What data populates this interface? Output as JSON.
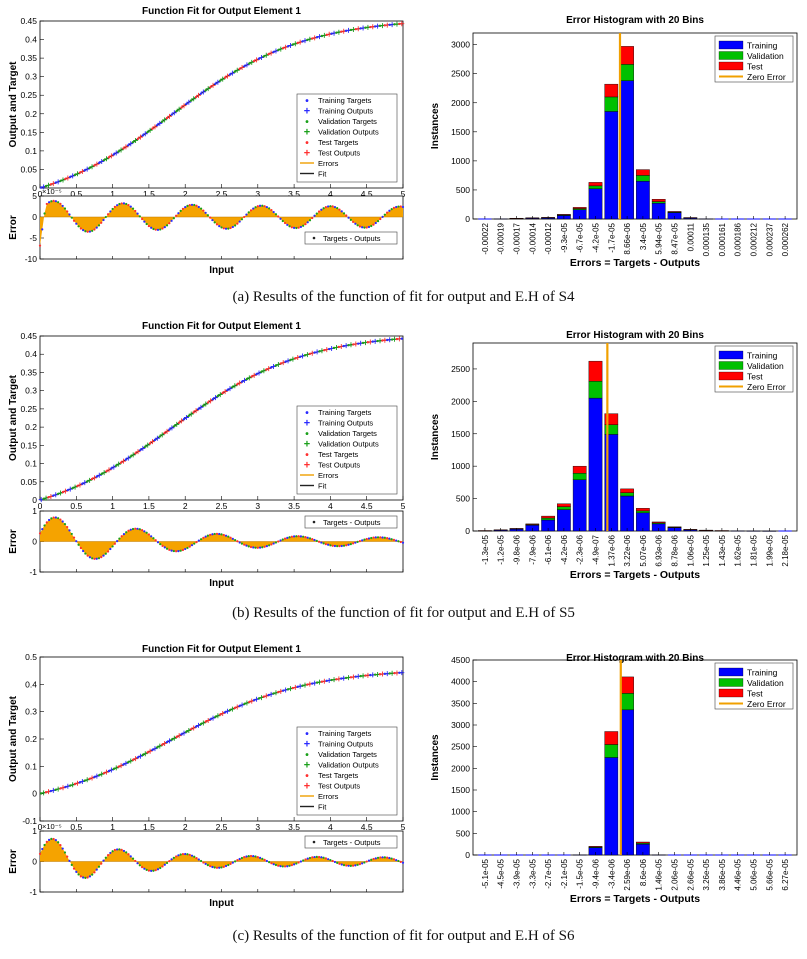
{
  "chart_data": [
    {
      "panel": "a",
      "caption": "(a)  Results of the function of fit for output and E.H of S4",
      "fit": {
        "type": "line",
        "title": "Function Fit for Output Element 1",
        "ylabel": "Output and Target",
        "ylim": [
          0,
          0.45
        ],
        "yticks": [
          "0",
          "0.05",
          "0.1",
          "0.15",
          "0.2",
          "0.25",
          "0.3",
          "0.35",
          "0.4",
          "0.45"
        ],
        "x_ticks": [
          "0",
          "0.5",
          "1",
          "1.5",
          "2",
          "2.5",
          "3",
          "3.5",
          "4",
          "4.5",
          "5"
        ],
        "xlim": [
          0,
          5
        ],
        "curve_max": 0.443,
        "legend": [
          "Training Targets",
          "Training Outputs",
          "Validation Targets",
          "Validation Outputs",
          "Test Targets",
          "Test Outputs",
          "Errors",
          "Fit"
        ],
        "error_plot": {
          "ylabel": "Error",
          "xlabel": "Input",
          "scale_label": "×10⁻⁵",
          "ylim": [
            -10,
            5
          ],
          "yticks": [
            "5",
            "0",
            "-5",
            "-10"
          ],
          "legend": "Targets - Outputs",
          "amp": 4,
          "freq": 1.05,
          "decay": 0.55,
          "floor": 0.6,
          "start_spike": -8
        }
      },
      "hist": {
        "type": "bar",
        "title": "Error Histogram with 20 Bins",
        "ylabel": "Instances",
        "xlabel": "Errors = Targets - Outputs",
        "ylim": [
          0,
          3200
        ],
        "yticks": [
          "0",
          "500",
          "1000",
          "1500",
          "2000",
          "2500",
          "3000"
        ],
        "categories": [
          "-0.00022",
          "-0.00019",
          "-0.00017",
          "-0.00014",
          "-0.00012",
          "-9.3e-05",
          "-6.7e-05",
          "-4.2e-05",
          "-1.7e-05",
          "8.66e-06",
          "3.4e-05",
          "5.94e-05",
          "8.47e-05",
          "0.00011",
          "0.000135",
          "0.000161",
          "0.000186",
          "0.000212",
          "0.000237",
          "0.000262"
        ],
        "series": [
          {
            "name": "Training",
            "color": "#0000ff",
            "values": [
              0,
              5,
              10,
              15,
              20,
              60,
              160,
              520,
              1850,
              2380,
              650,
              270,
              110,
              20,
              5,
              0,
              0,
              0,
              0,
              0
            ]
          },
          {
            "name": "Validation",
            "color": "#00c000",
            "values": [
              0,
              0,
              2,
              3,
              4,
              10,
              20,
              50,
              250,
              280,
              100,
              30,
              10,
              3,
              0,
              0,
              0,
              0,
              0,
              0
            ]
          },
          {
            "name": "Test",
            "color": "#ff0000",
            "values": [
              0,
              0,
              2,
              3,
              4,
              10,
              20,
              60,
              220,
              310,
              100,
              40,
              10,
              2,
              0,
              0,
              0,
              0,
              0,
              0
            ]
          }
        ],
        "zero_error_index": 8.55,
        "legend": [
          "Training",
          "Validation",
          "Test",
          "Zero Error"
        ]
      }
    },
    {
      "panel": "b",
      "caption": "(b)  Results of the function of fit for output and E.H of S5",
      "fit": {
        "type": "line",
        "title": "Function Fit for Output Element 1",
        "ylabel": "Output and Target",
        "ylim": [
          0,
          0.45
        ],
        "yticks": [
          "0",
          "0.05",
          "0.1",
          "0.15",
          "0.2",
          "0.25",
          "0.3",
          "0.35",
          "0.4",
          "0.45"
        ],
        "x_ticks": [
          "0",
          "0.5",
          "1",
          "1.5",
          "2",
          "2.5",
          "3",
          "3.5",
          "4",
          "4.5",
          "5"
        ],
        "xlim": [
          0,
          5
        ],
        "curve_max": 0.443,
        "legend": [
          "Training Targets",
          "Training Outputs",
          "Validation Targets",
          "Validation Outputs",
          "Test Targets",
          "Test Outputs",
          "Errors",
          "Fit"
        ],
        "error_plot": {
          "ylabel": "Error",
          "xlabel": "Input",
          "scale_label": "",
          "ylim": [
            -1,
            1
          ],
          "yticks": [
            "1",
            "0",
            "-1"
          ],
          "legend": "Targets - Outputs",
          "amp": 0.9,
          "freq": 0.9,
          "decay": 0.7,
          "floor": 0.12,
          "start_spike": 0
        }
      },
      "hist": {
        "type": "bar",
        "title": "Error Histogram with 20 Bins",
        "ylabel": "Instances",
        "xlabel": "Errors = Targets - Outputs",
        "ylim": [
          0,
          2900
        ],
        "yticks": [
          "0",
          "500",
          "1000",
          "1500",
          "2000",
          "2500"
        ],
        "categories": [
          "-1.3e-05",
          "-1.2e-05",
          "-9.8e-06",
          "-7.9e-06",
          "-6.1e-06",
          "-4.2e-06",
          "-2.3e-06",
          "-4.9e-07",
          "1.37e-06",
          "3.22e-06",
          "5.07e-06",
          "6.93e-06",
          "8.78e-06",
          "1.06e-05",
          "1.25e-05",
          "1.43e-05",
          "1.62e-05",
          "1.81e-05",
          "1.99e-05",
          "2.18e-05"
        ],
        "series": [
          {
            "name": "Training",
            "color": "#0000ff",
            "values": [
              5,
              15,
              30,
              90,
              170,
              330,
              790,
              2050,
              1490,
              540,
              280,
              110,
              50,
              20,
              10,
              5,
              3,
              2,
              1,
              0
            ]
          },
          {
            "name": "Validation",
            "color": "#00c000",
            "values": [
              1,
              3,
              5,
              10,
              30,
              45,
              100,
              260,
              150,
              50,
              30,
              15,
              8,
              3,
              2,
              1,
              0,
              0,
              0,
              0
            ]
          },
          {
            "name": "Test",
            "color": "#ff0000",
            "values": [
              1,
              2,
              5,
              10,
              30,
              45,
              110,
              310,
              170,
              60,
              40,
              15,
              7,
              2,
              2,
              1,
              0,
              0,
              0,
              0
            ]
          }
        ],
        "zero_error_index": 7.75,
        "legend": [
          "Training",
          "Validation",
          "Test",
          "Zero Error"
        ]
      }
    },
    {
      "panel": "c",
      "caption": "(c)  Results of the function of fit for output and E.H of S6",
      "fit": {
        "type": "line",
        "title": "Function Fit for Output Element 1",
        "ylabel": "Output and Target",
        "ylim": [
          -0.1,
          0.5
        ],
        "yticks": [
          "-0.1",
          "0",
          "0.1",
          "0.2",
          "0.3",
          "0.4",
          "0.5"
        ],
        "x_ticks": [
          "0",
          "0.5",
          "1",
          "1.5",
          "2",
          "2.5",
          "3",
          "3.5",
          "4",
          "4.5",
          "5"
        ],
        "xlim": [
          0,
          5
        ],
        "curve_max": 0.443,
        "legend": [
          "Training Targets",
          "Training Outputs",
          "Validation Targets",
          "Validation Outputs",
          "Test Targets",
          "Test Outputs",
          "Errors",
          "Fit"
        ],
        "error_plot": {
          "ylabel": "Error",
          "xlabel": "Input",
          "scale_label": "×10⁻⁵",
          "ylim": [
            -1,
            1
          ],
          "yticks": [
            "1",
            "0",
            "-1"
          ],
          "legend": "Targets - Outputs",
          "amp": 0.85,
          "freq": 1.1,
          "decay": 0.9,
          "floor": 0.15,
          "start_spike": 0
        }
      },
      "hist": {
        "type": "bar",
        "title": "Error Histogram with 20 Bins",
        "ylabel": "Instances",
        "xlabel": "Errors = Targets - Outputs",
        "ylim": [
          0,
          4500
        ],
        "yticks": [
          "0",
          "500",
          "1000",
          "1500",
          "2000",
          "2500",
          "3000",
          "3500",
          "4000",
          "4500"
        ],
        "categories": [
          "-5.1e-05",
          "-4.5e-05",
          "-3.9e-05",
          "-3.3e-05",
          "-2.7e-05",
          "-2.1e-05",
          "-1.5e-05",
          "-9.4e-06",
          "-3.4e-06",
          "2.59e-06",
          "8.6e-06",
          "1.46e-05",
          "2.06e-05",
          "2.66e-05",
          "3.26e-05",
          "3.86e-05",
          "4.46e-05",
          "5.06e-05",
          "5.66e-05",
          "6.27e-05"
        ],
        "series": [
          {
            "name": "Training",
            "color": "#0000ff",
            "values": [
              0,
              0,
              0,
              0,
              0,
              0,
              5,
              170,
              2250,
              3350,
              250,
              5,
              0,
              0,
              0,
              0,
              0,
              0,
              0,
              0
            ]
          },
          {
            "name": "Validation",
            "color": "#00c000",
            "values": [
              0,
              0,
              0,
              0,
              0,
              0,
              0,
              15,
              300,
              380,
              25,
              0,
              0,
              0,
              0,
              0,
              0,
              0,
              0,
              0
            ]
          },
          {
            "name": "Test",
            "color": "#ff0000",
            "values": [
              0,
              0,
              0,
              0,
              0,
              0,
              0,
              15,
              300,
              380,
              25,
              0,
              0,
              0,
              0,
              0,
              0,
              0,
              0,
              0
            ]
          }
        ],
        "zero_error_index": 8.6,
        "legend": [
          "Training",
          "Validation",
          "Test",
          "Zero Error"
        ]
      }
    }
  ]
}
